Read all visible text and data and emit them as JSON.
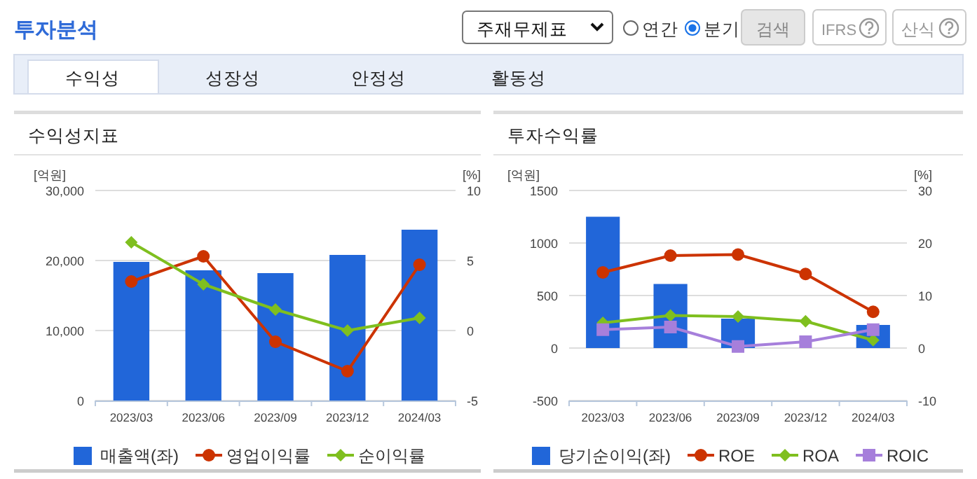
{
  "chart_data": [
    {
      "type": "other",
      "title": "투자분석",
      "annotations": [
        "주재무제표",
        "연간",
        "분기",
        "검색",
        "IFRS",
        "산식",
        "수익성",
        "성장성",
        "안정성",
        "활동성"
      ]
    },
    {
      "type": "bar",
      "title": "수익성지표",
      "ylabel": "[억원]",
      "y2label": "[%]",
      "categories": [
        "2023/03",
        "2023/06",
        "2023/09",
        "2023/12",
        "2024/03"
      ],
      "ylim": [
        0,
        30000
      ],
      "yticks": [
        0,
        {
          "value": 10000,
          "label": "10,000"
        },
        {
          "value": 20000,
          "label": "20,000"
        },
        {
          "value": 30000,
          "label": "30,000"
        }
      ],
      "y2lim": [
        -5,
        10
      ],
      "y2ticks": [
        -5,
        0,
        5,
        10
      ],
      "grid": "y",
      "legend": "bottom",
      "series": [
        {
          "name": "매출액(좌)",
          "type": "bar",
          "color": "#2166d9",
          "values": [
            19800,
            18600,
            18200,
            20800,
            24400
          ]
        },
        {
          "name": "영업이익률",
          "type": "line",
          "axis": "y2",
          "marker": "circle",
          "color": "#cc3300",
          "values": [
            3.5,
            5.3,
            -0.8,
            -2.9,
            4.7
          ]
        },
        {
          "name": "순이익률",
          "type": "line",
          "axis": "y2",
          "marker": "diamond",
          "color": "#7fbf1f",
          "values": [
            6.3,
            3.3,
            1.5,
            0.0,
            0.9
          ]
        }
      ]
    },
    {
      "type": "bar",
      "title": "투자수익률",
      "ylabel": "[억원]",
      "y2label": "[%]",
      "categories": [
        "2023/03",
        "2023/06",
        "2023/09",
        "2023/12",
        "2024/03"
      ],
      "ylim": [
        -500,
        1500
      ],
      "yticks": [
        -500,
        0,
        500,
        1000,
        1500
      ],
      "y2lim": [
        -10,
        30
      ],
      "y2ticks": [
        -10,
        0,
        10,
        20,
        30
      ],
      "grid": "y",
      "legend": "bottom",
      "series": [
        {
          "name": "당기순이익(좌)",
          "type": "bar",
          "color": "#2166d9",
          "values": [
            1250,
            610,
            280,
            null,
            220
          ]
        },
        {
          "name": "ROE",
          "type": "line",
          "axis": "y2",
          "marker": "circle",
          "color": "#cc3300",
          "values": [
            14.4,
            17.6,
            17.8,
            14.1,
            6.9
          ]
        },
        {
          "name": "ROA",
          "type": "line",
          "axis": "y2",
          "marker": "diamond",
          "color": "#7fbf1f",
          "values": [
            4.8,
            6.2,
            6.0,
            5.1,
            1.5
          ]
        },
        {
          "name": "ROIC",
          "type": "line",
          "axis": "y2",
          "marker": "square",
          "color": "#a67fdb",
          "values": [
            3.5,
            4.0,
            0.3,
            1.2,
            3.5
          ]
        }
      ]
    }
  ]
}
